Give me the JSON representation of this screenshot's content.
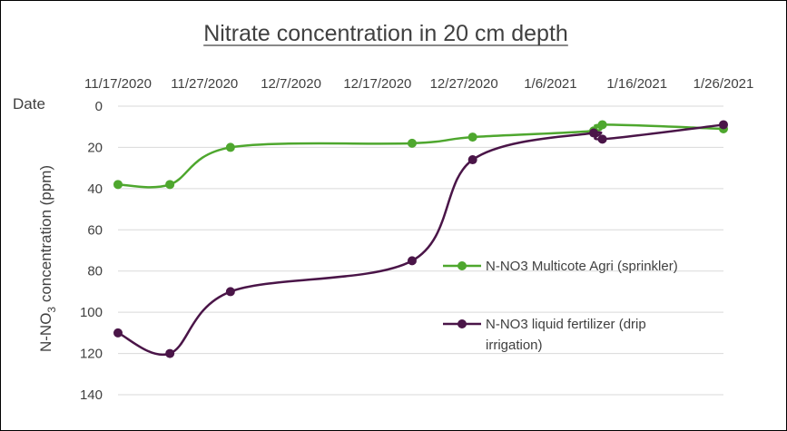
{
  "chart_data": {
    "type": "line",
    "title": "Nitrate concentration in 20 cm depth",
    "xlabel": "Date",
    "ylabel": "N-NO3 concentration (ppm)",
    "ylabel_parts": [
      "N-NO",
      "3",
      " concentration (ppm)"
    ],
    "x_tick_labels": [
      "11/17/2020",
      "11/27/2020",
      "12/7/2020",
      "12/17/2020",
      "12/27/2020",
      "1/6/2021",
      "1/16/2021",
      "1/26/2021"
    ],
    "y_ticks": [
      0,
      20,
      40,
      60,
      80,
      100,
      120,
      140
    ],
    "ylim": [
      0,
      140
    ],
    "y_reversed": true,
    "x_position": "top",
    "grid": "horizontal",
    "legend_position": "right-center",
    "series": [
      {
        "name": "N-NO3 Multicote Agri (sprinkler)",
        "color": "#4ea72e",
        "x": [
          "11/17/2020",
          "11/23/2020",
          "11/30/2020",
          "12/21/2020",
          "12/28/2020",
          "1/11/2021",
          "1/12/2021",
          "1/26/2021"
        ],
        "y": [
          38,
          38,
          20,
          18,
          15,
          12,
          9,
          11
        ]
      },
      {
        "name": "N-NO3 liquid fertilizer (drip irrigation)",
        "legend_lines": [
          "N-NO3 liquid fertilizer (drip",
          "irrigation)"
        ],
        "color": "#4a1548",
        "x": [
          "11/17/2020",
          "11/23/2020",
          "11/30/2020",
          "12/21/2020",
          "12/28/2020",
          "1/11/2021",
          "1/12/2021",
          "1/26/2021"
        ],
        "y": [
          110,
          120,
          90,
          75,
          26,
          13,
          16,
          9
        ]
      }
    ]
  }
}
